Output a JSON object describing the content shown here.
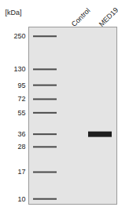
{
  "chart_data": {
    "type": "western_blot",
    "y_label": "[kDa]",
    "categories": [
      null,
      "Control",
      "MED19"
    ],
    "ylim": [
      9,
      300
    ],
    "yticks": [
      250,
      130,
      95,
      72,
      55,
      36,
      28,
      17,
      10
    ],
    "log": "y",
    "bands": [
      {
        "lane": "MED19",
        "kDa": 36
      }
    ]
  }
}
